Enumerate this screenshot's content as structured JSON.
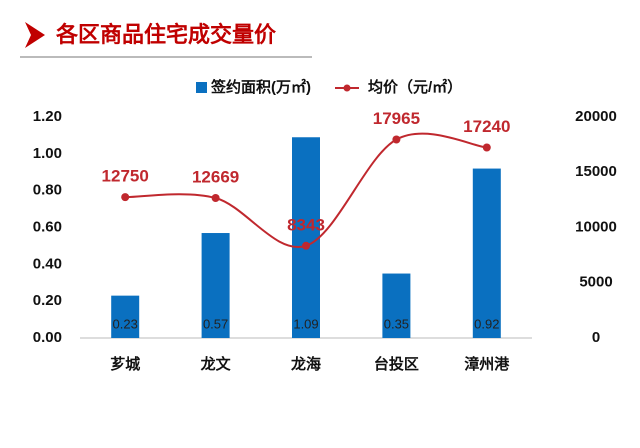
{
  "chart_data": {
    "type": "bar",
    "title": "各区商品住宅成交量价",
    "categories": [
      "芗城",
      "龙文",
      "龙海",
      "台投区",
      "漳州港"
    ],
    "series": [
      {
        "name": "签约面积(万㎡)",
        "type": "bar",
        "color": "#0a70c0",
        "values": [
          0.23,
          0.57,
          1.09,
          0.35,
          0.92
        ]
      },
      {
        "name": "均价（元/㎡）",
        "type": "line",
        "axis": "y2",
        "color": "#c0282e",
        "values": [
          12750,
          12669,
          8343,
          17965,
          17240
        ]
      }
    ],
    "ylim": [
      0,
      1.2
    ],
    "yticks": [
      {
        "value": 0,
        "label": "0.00"
      },
      {
        "value": 0.2,
        "label": "0.20"
      },
      {
        "value": 0.4,
        "label": "0.40"
      },
      {
        "value": 0.6,
        "label": "0.60"
      },
      {
        "value": 0.8,
        "label": "0.80"
      },
      {
        "value": 1.0,
        "label": "1.00"
      },
      {
        "value": 1.2,
        "label": "1.20"
      }
    ],
    "y2lim": [
      0,
      20000
    ],
    "y2ticks": [
      0,
      5000,
      10000,
      15000,
      20000
    ],
    "grid": false
  }
}
